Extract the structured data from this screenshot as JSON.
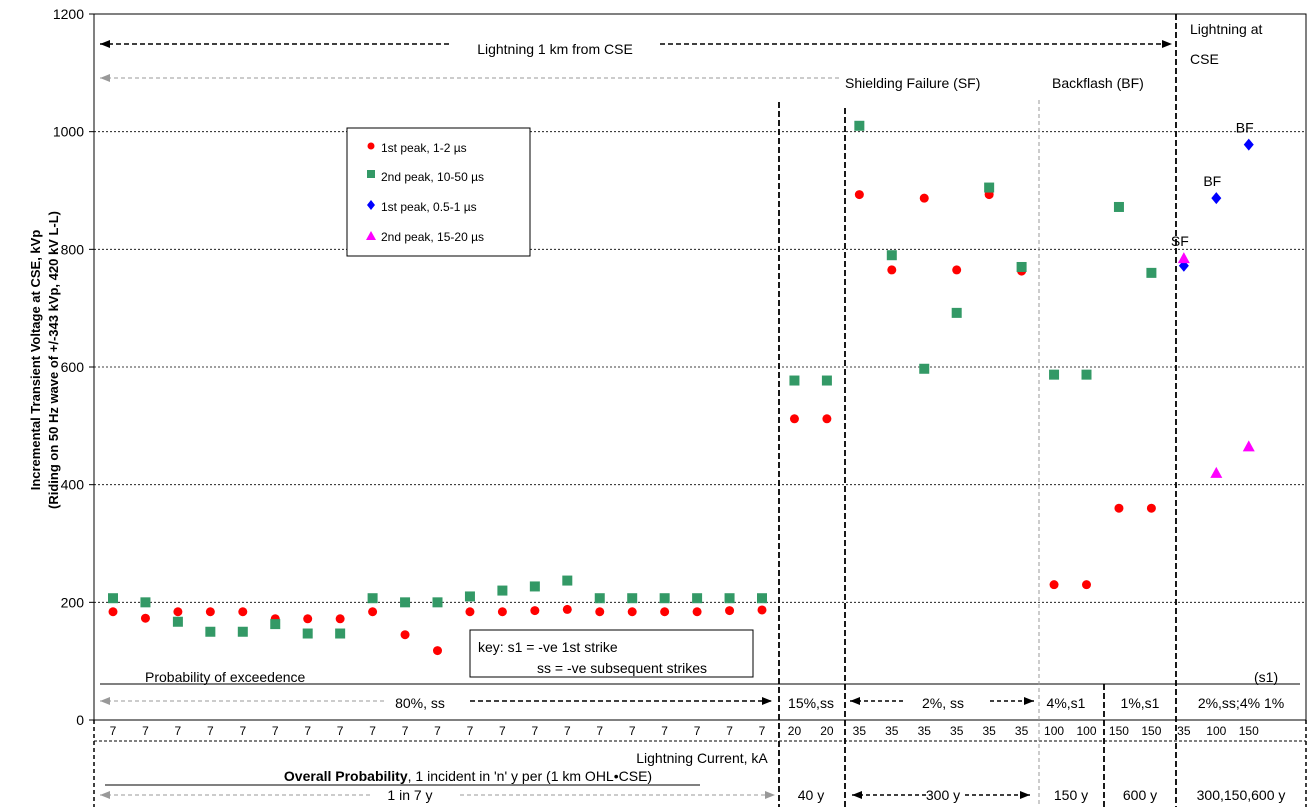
{
  "chart_data": {
    "type": "scatter",
    "ylabel_line1": "Incremental Transient Voltage at CSE,  kVp",
    "ylabel_line2": "(Riding on 50 Hz wave of +/-343 kVp, 420 kV L-L)",
    "ylim": [
      0,
      1200
    ],
    "yticks": [
      "0",
      "200",
      "400",
      "600",
      "800",
      "1000",
      "1200"
    ],
    "grid": true,
    "legend_placement": "top-left",
    "categories": [
      "7",
      "7",
      "7",
      "7",
      "7",
      "7",
      "7",
      "7",
      "7",
      "7",
      "7",
      "7",
      "7",
      "7",
      "7",
      "7",
      "7",
      "7",
      "7",
      "7",
      "7",
      "20",
      "20",
      "35",
      "35",
      "35",
      "35",
      "35",
      "35",
      "100",
      "100",
      "150",
      "150",
      "35",
      "100",
      "150"
    ],
    "current_label": "Lightning Current, kA",
    "series": [
      {
        "name": "1st peak, 1-2 µs",
        "color": "#ff0000",
        "marker": "circle",
        "points": [
          [
            0,
            184
          ],
          [
            1,
            173
          ],
          [
            2,
            184
          ],
          [
            3,
            184
          ],
          [
            4,
            184
          ],
          [
            5,
            172
          ],
          [
            6,
            172
          ],
          [
            7,
            172
          ],
          [
            8,
            184
          ],
          [
            9,
            145
          ],
          [
            10,
            118
          ],
          [
            11,
            184
          ],
          [
            12,
            184
          ],
          [
            13,
            186
          ],
          [
            14,
            188
          ],
          [
            15,
            184
          ],
          [
            16,
            184
          ],
          [
            17,
            184
          ],
          [
            18,
            184
          ],
          [
            19,
            186
          ],
          [
            20,
            187
          ],
          [
            21,
            512
          ],
          [
            22,
            512
          ],
          [
            23,
            893
          ],
          [
            24,
            765
          ],
          [
            25,
            887
          ],
          [
            26,
            765
          ],
          [
            27,
            893
          ],
          [
            28,
            763
          ],
          [
            29,
            230
          ],
          [
            30,
            230
          ],
          [
            31,
            360
          ],
          [
            32,
            360
          ]
        ]
      },
      {
        "name": "2nd peak, 10-50 µs",
        "color": "#339966",
        "marker": "square",
        "points": [
          [
            0,
            207
          ],
          [
            1,
            200
          ],
          [
            2,
            167
          ],
          [
            3,
            150
          ],
          [
            4,
            150
          ],
          [
            5,
            163
          ],
          [
            6,
            147
          ],
          [
            7,
            147
          ],
          [
            8,
            207
          ],
          [
            9,
            200
          ],
          [
            10,
            200
          ],
          [
            11,
            210
          ],
          [
            12,
            220
          ],
          [
            13,
            227
          ],
          [
            14,
            237
          ],
          [
            15,
            207
          ],
          [
            16,
            207
          ],
          [
            17,
            207
          ],
          [
            18,
            207
          ],
          [
            19,
            207
          ],
          [
            20,
            207
          ],
          [
            21,
            577
          ],
          [
            22,
            577
          ],
          [
            23,
            1010
          ],
          [
            24,
            790
          ],
          [
            25,
            597
          ],
          [
            26,
            692
          ],
          [
            27,
            905
          ],
          [
            28,
            770
          ],
          [
            29,
            587
          ],
          [
            30,
            587
          ],
          [
            31,
            872
          ],
          [
            32,
            760
          ]
        ]
      },
      {
        "name": "1st peak, 0.5-1 µs",
        "color": "#0000ff",
        "marker": "diamond",
        "points": [
          [
            33,
            772
          ],
          [
            34,
            887
          ],
          [
            35,
            978
          ]
        ]
      },
      {
        "name": "2nd peak, 15-20 µs",
        "color": "#ff00ff",
        "marker": "triangle",
        "points": [
          [
            33,
            785
          ],
          [
            34,
            420
          ],
          [
            35,
            465
          ]
        ]
      }
    ],
    "point_labels": [
      {
        "text": "SF",
        "col": 33,
        "y": 785
      },
      {
        "text": "BF",
        "col": 34,
        "y": 887
      },
      {
        "text": "BF",
        "col": 35,
        "y": 978
      }
    ],
    "top_annotations": {
      "lightning_1km": "Lightning 1 km from CSE",
      "lightning_cse_1": "Lightning at",
      "lightning_cse_2": "CSE",
      "shielding_failure": "Shielding Failure (SF)",
      "backflash": "Backflash (BF)"
    },
    "key_box": {
      "line1": "key:  s1 = -ve 1st strike",
      "line2": "ss = -ve subsequent strikes"
    },
    "exceedence_label": "Probability of exceedence",
    "s1_label": "(s1)",
    "exceedence_values": [
      "80%, ss",
      "15%,ss",
      "2%, ss",
      "4%,s1",
      "1%,s1",
      "2%,ss;4% 1%"
    ],
    "overall_probability_bold": "Overall Probability",
    "overall_probability_rest": ", 1 incident in 'n' y per (1 km OHL•CSE)",
    "overall_values": [
      "1 in 7 y",
      "40 y",
      "300 y",
      "150 y",
      "600 y",
      "300,150,600 y"
    ]
  }
}
